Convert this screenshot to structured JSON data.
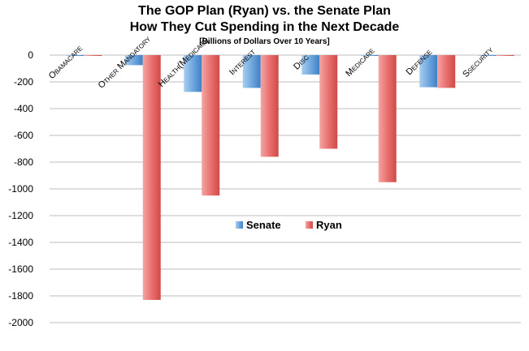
{
  "chart_data": {
    "type": "bar",
    "title_lines": [
      "The GOP Plan (Ryan) vs. the Senate Plan",
      "How They Cut Spending in the Next Decade"
    ],
    "subtitle": "[Billions of Dollars Over 10 Years]",
    "categories": [
      "Obamacare",
      "Other Mandatory",
      "Health(Medicaid)",
      "Interest",
      "Disc",
      "Medicare",
      "Defense",
      "Ssecurity"
    ],
    "series": [
      {
        "name": "Senate",
        "color": "#5b9bd5",
        "values": [
          -5,
          -75,
          -275,
          -245,
          -145,
          -5,
          -240,
          -5
        ]
      },
      {
        "name": "Ryan",
        "color": "#e8706f",
        "values": [
          -5,
          -1830,
          -1050,
          -760,
          -700,
          -950,
          -245,
          -5
        ]
      }
    ],
    "ylim": [
      -2000,
      0
    ],
    "yticks": [
      0,
      -200,
      -400,
      -600,
      -800,
      -1000,
      -1200,
      -1400,
      -1600,
      -1800,
      -2000
    ],
    "grid": true,
    "legend_position": "inside-center"
  }
}
